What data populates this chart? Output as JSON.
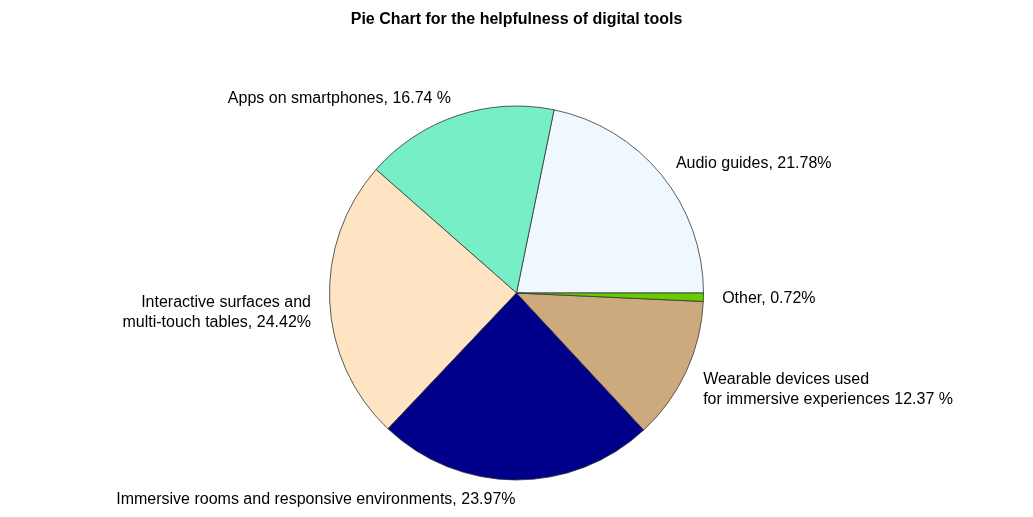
{
  "chart_data": {
    "type": "pie",
    "title": "Pie Chart for the helpfulness of digital tools",
    "categories": [
      "Audio guides, 21.78%",
      "Apps on smartphones, 16.74 %",
      "Interactive surfaces and\nmulti-touch tables, 24.42%",
      "Immersive rooms and responsive environments, 23.97%",
      "Wearable devices used\nfor immersive experiences 12.37 %",
      "Other, 0.72%"
    ],
    "values": [
      21.78,
      16.74,
      24.42,
      23.97,
      12.37,
      0.72
    ],
    "colors": [
      "#f0f8ff",
      "#76eec6",
      "#ffe4c4",
      "#00008b",
      "#cdaa7d",
      "#66cd00"
    ],
    "legend": false
  }
}
